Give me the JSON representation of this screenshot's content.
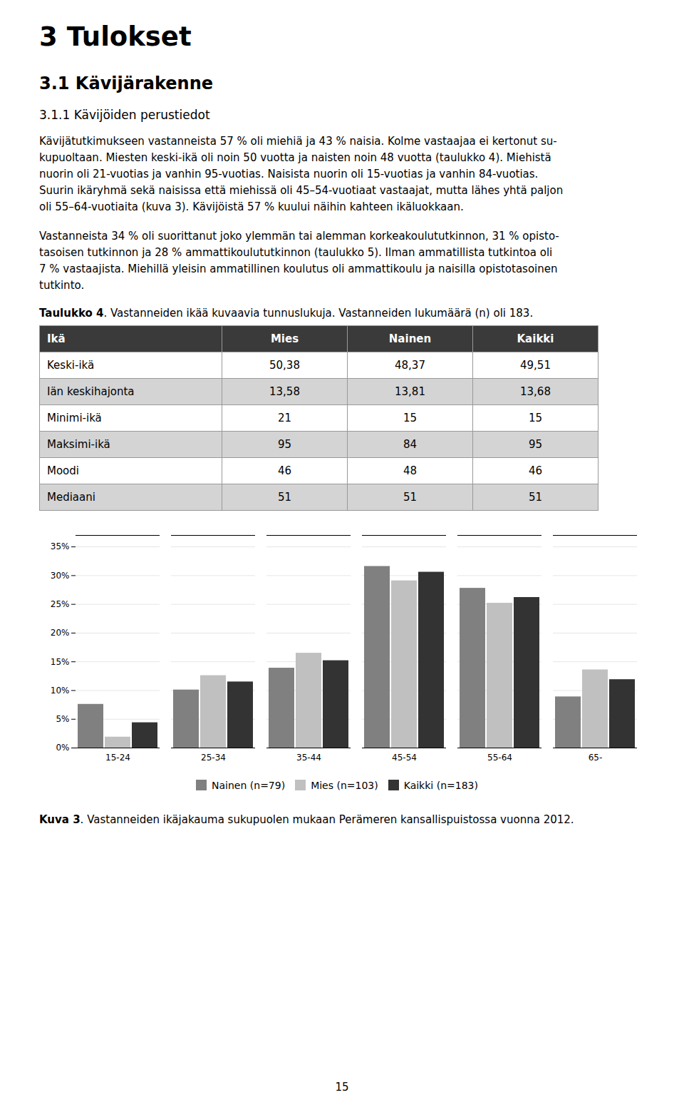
{
  "page": {
    "headings": [
      "3 Tulokset",
      "3.1 Kävijärakenne",
      "3.1.1 Kävijöiden perustiedot"
    ],
    "paragraphs": [
      [
        "Kävijätutkimukseen vastanneista 57 % oli miehiä ja 43 % naisia. Kolme vastaajaa ei kertonut su-",
        "kupuoltaan. Miesten keski-ikä oli noin 50 vuotta ja naisten noin 48 vuotta (taulukko 4). Miehistä",
        "nuorin oli 21-vuotias ja vanhin 95-vuotias. Naisista nuorin oli 15-vuotias ja vanhin 84-vuotias.",
        "Suurin ikäryhmä sekä naisissa että miehissä oli 45–54-vuotiaat vastaajat, mutta lähes yhtä paljon",
        "oli 55–64-vuotiaita (kuva 3). Kävijöistä 57 % kuului näihin kahteen ikäluokkaan."
      ],
      [
        "Vastanneista 34 % oli suorittanut joko ylemmän tai alemman korkeakoulututkinnon, 31 % opisto-",
        "tasoisen tutkinnon ja 28 % ammattikoulututkinnon (taulukko 5). Ilman ammatillista tutkintoa oli",
        "7 % vastaajista. Miehillä yleisin ammatillinen koulutus oli ammattikoulu ja naisilla opistotasoinen",
        "tutkinto."
      ]
    ],
    "table": {
      "title": "Taulukko 4. Vastanneiden ikää kuvaavia tunnuslukuja. Vastanneiden lukumäärä (n) oli 183.",
      "headers": [
        "Ikä",
        "Mies",
        "Nainen",
        "Kaikki"
      ],
      "rows": [
        [
          "Keski-ikä",
          "50,38",
          "48,37",
          "49,51"
        ],
        [
          "Iän keskihajonta",
          "13,58",
          "13,81",
          "13,68"
        ],
        [
          "Minimi-ikä",
          "21",
          "15",
          "15"
        ],
        [
          "Maksimi-ikä",
          "95",
          "84",
          "95"
        ],
        [
          "Moodi",
          "46",
          "48",
          "46"
        ],
        [
          "Mediaani",
          "51",
          "51",
          "51"
        ]
      ]
    },
    "page_number": "15"
  },
  "chart_data": {
    "type": "bar",
    "caption": "Kuva 3. Vastanneiden ikäjakauma sukupuolen mukaan Perämeren kansallispuistossa vuonna 2012.",
    "categories": [
      "15-24",
      "25-34",
      "35-44",
      "45-54",
      "55-64",
      "65-"
    ],
    "series": [
      {
        "name": "Nainen (n=79)",
        "color": "#808080",
        "values": [
          7.6,
          10.1,
          13.9,
          31.6,
          27.8,
          8.9
        ]
      },
      {
        "name": "Mies (n=103)",
        "color": "#c0c0c0",
        "values": [
          1.9,
          12.6,
          16.5,
          29.1,
          25.2,
          13.6
        ]
      },
      {
        "name": "Kaikki (n=183)",
        "color": "#333333",
        "values": [
          4.4,
          11.5,
          15.2,
          30.6,
          26.2,
          11.9
        ]
      }
    ],
    "ylim": [
      0,
      37
    ],
    "yticks": [
      {
        "value": 0,
        "label": "0%"
      },
      {
        "value": 5,
        "label": "5%"
      },
      {
        "value": 10,
        "label": "10%"
      },
      {
        "value": 15,
        "label": "15%"
      },
      {
        "value": 20,
        "label": "20%"
      },
      {
        "value": 25,
        "label": "25%"
      },
      {
        "value": 30,
        "label": "30%"
      },
      {
        "value": 35,
        "label": "35%"
      }
    ],
    "grid": true,
    "legend": "bottom"
  }
}
